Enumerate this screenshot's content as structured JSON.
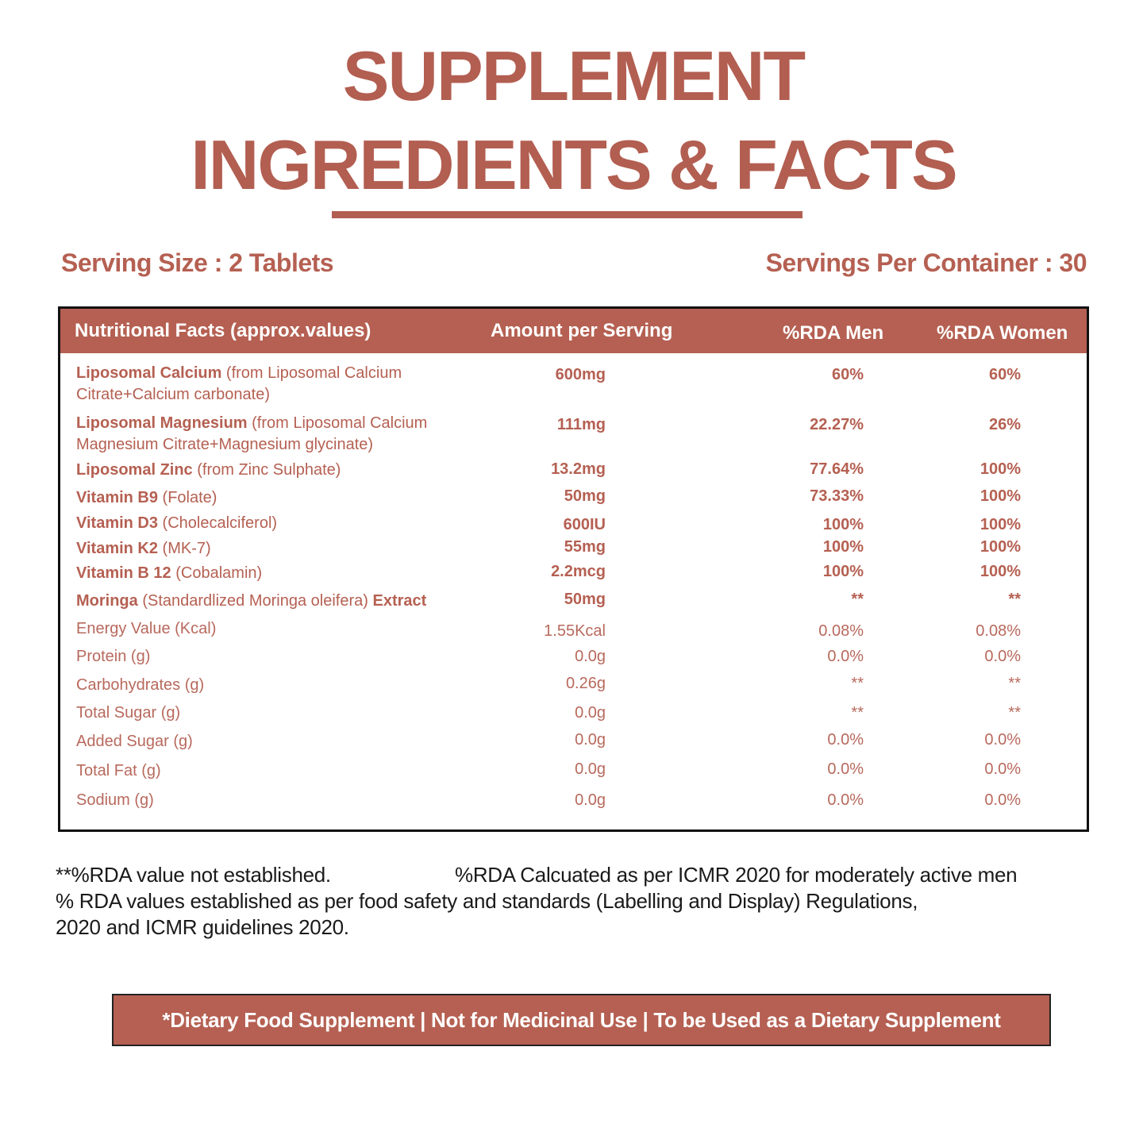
{
  "header": {
    "title_line1": "SUPPLEMENT",
    "title_line2": "INGREDIENTS & FACTS"
  },
  "serving": {
    "size": "Serving Size : 2 Tablets",
    "per_container": "Servings Per Container : 30"
  },
  "table": {
    "columns": {
      "name": "Nutritional Facts (approx.values)",
      "amount": "Amount per Serving",
      "men": "%RDA Men",
      "women": "%RDA Women"
    },
    "rows": [
      {
        "bold_name": "Liposomal Calcium",
        "detail": " (from Liposomal Calcium Citrate+Calcium carbonate)",
        "amount": "600mg",
        "men": "60%",
        "women": "60%"
      },
      {
        "bold_name": "Liposomal Magnesium",
        "detail": " (from Liposomal Calcium Magnesium Citrate+Magnesium glycinate)",
        "amount": "111mg",
        "men": "22.27%",
        "women": "26%"
      },
      {
        "bold_name": "Liposomal Zinc",
        "detail": " (from Zinc Sulphate)",
        "amount": "13.2mg",
        "men": "77.64%",
        "women": "100%"
      },
      {
        "bold_name": "Vitamin B9",
        "detail": " (Folate)",
        "amount": "50mg",
        "men": "73.33%",
        "women": "100%"
      },
      {
        "bold_name": "Vitamin D3",
        "detail": " (Cholecalciferol)",
        "amount": "600IU",
        "men": "100%",
        "women": "100%"
      },
      {
        "bold_name": "Vitamin K2",
        "detail": " (MK-7)",
        "amount": "55mg",
        "men": "100%",
        "women": "100%"
      },
      {
        "bold_name": "Vitamin B 12",
        "detail": " (Cobalamin)",
        "amount": "2.2mcg",
        "men": "100%",
        "women": "100%"
      },
      {
        "bold_name": "Moringa",
        "detail": " (Standardlized Moringa oleifera) ",
        "bold_suffix": "Extract",
        "amount": "50mg",
        "men": "**",
        "women": "**"
      },
      {
        "name": "Energy Value (Kcal)",
        "amount": "1.55Kcal",
        "men": "0.08%",
        "women": "0.08%"
      },
      {
        "name": "Protein (g)",
        "amount": "0.0g",
        "men": "0.0%",
        "women": "0.0%"
      },
      {
        "name": "Carbohydrates (g)",
        "amount": "0.26g",
        "men": "**",
        "women": "**"
      },
      {
        "name": "Total Sugar (g)",
        "amount": "0.0g",
        "men": "**",
        "women": "**"
      },
      {
        "name": "Added Sugar (g)",
        "amount": "0.0g",
        "men": "0.0%",
        "women": "0.0%"
      },
      {
        "name": "Total Fat (g)",
        "amount": "0.0g",
        "men": "0.0%",
        "women": "0.0%"
      },
      {
        "name": "Sodium (g)",
        "amount": "0.0g",
        "men": "0.0%",
        "women": "0.0%"
      }
    ]
  },
  "notes": {
    "not_established": "**%RDA value not established.",
    "calculated": "%RDA Calcuated as per ICMR 2020 for moderately active men",
    "line2": "% RDA values established as per food safety and standards (Labelling and Display) Regulations,",
    "line3": "2020 and ICMR guidelines 2020."
  },
  "banner": {
    "text": "*Dietary Food Supplement | Not for Medicinal Use | To be Used as a Dietary Supplement"
  },
  "colors": {
    "brand": "#b56052",
    "text_dark": "#1a1a1a"
  }
}
